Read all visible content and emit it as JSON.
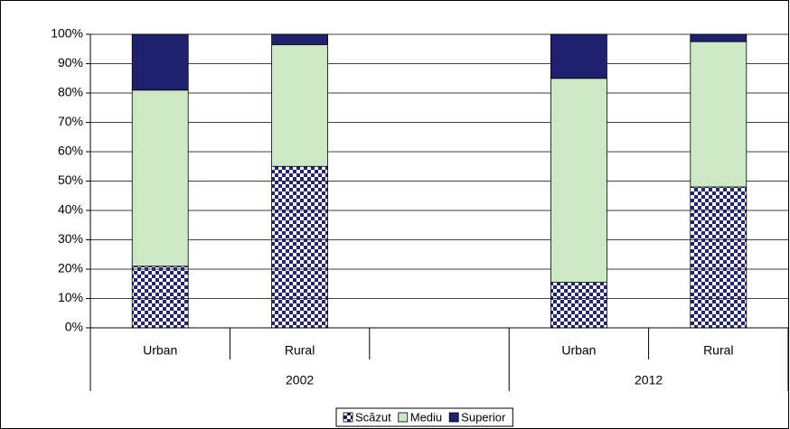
{
  "chart_data": {
    "type": "stacked-bar",
    "categories": [
      "Urban",
      "Rural",
      null,
      "Urban",
      "Rural"
    ],
    "groups": [
      {
        "label": "2002",
        "span": 3
      },
      {
        "label": "2012",
        "span": 2
      }
    ],
    "series": [
      {
        "name": "Scăzut",
        "color": "#23237a",
        "pattern": "checker",
        "values": [
          21,
          55,
          null,
          15.5,
          48
        ]
      },
      {
        "name": "Mediu",
        "color": "#cce8c4",
        "values": [
          60,
          41.5,
          null,
          69.5,
          49.5
        ]
      },
      {
        "name": "Superior",
        "color": "#1f2070",
        "values": [
          19,
          3.5,
          null,
          15,
          2.5
        ]
      }
    ],
    "ylim": [
      0,
      100
    ],
    "yticks": [
      {
        "value": 0,
        "label": "0%"
      },
      {
        "value": 10,
        "label": "10%"
      },
      {
        "value": 20,
        "label": "20%"
      },
      {
        "value": 30,
        "label": "30%"
      },
      {
        "value": 40,
        "label": "40%"
      },
      {
        "value": 50,
        "label": "50%"
      },
      {
        "value": 60,
        "label": "60%"
      },
      {
        "value": 70,
        "label": "70%"
      },
      {
        "value": 80,
        "label": "80%"
      },
      {
        "value": 90,
        "label": "90%"
      },
      {
        "value": 100,
        "label": "100%"
      }
    ],
    "grid": true,
    "legend": "bottom"
  }
}
